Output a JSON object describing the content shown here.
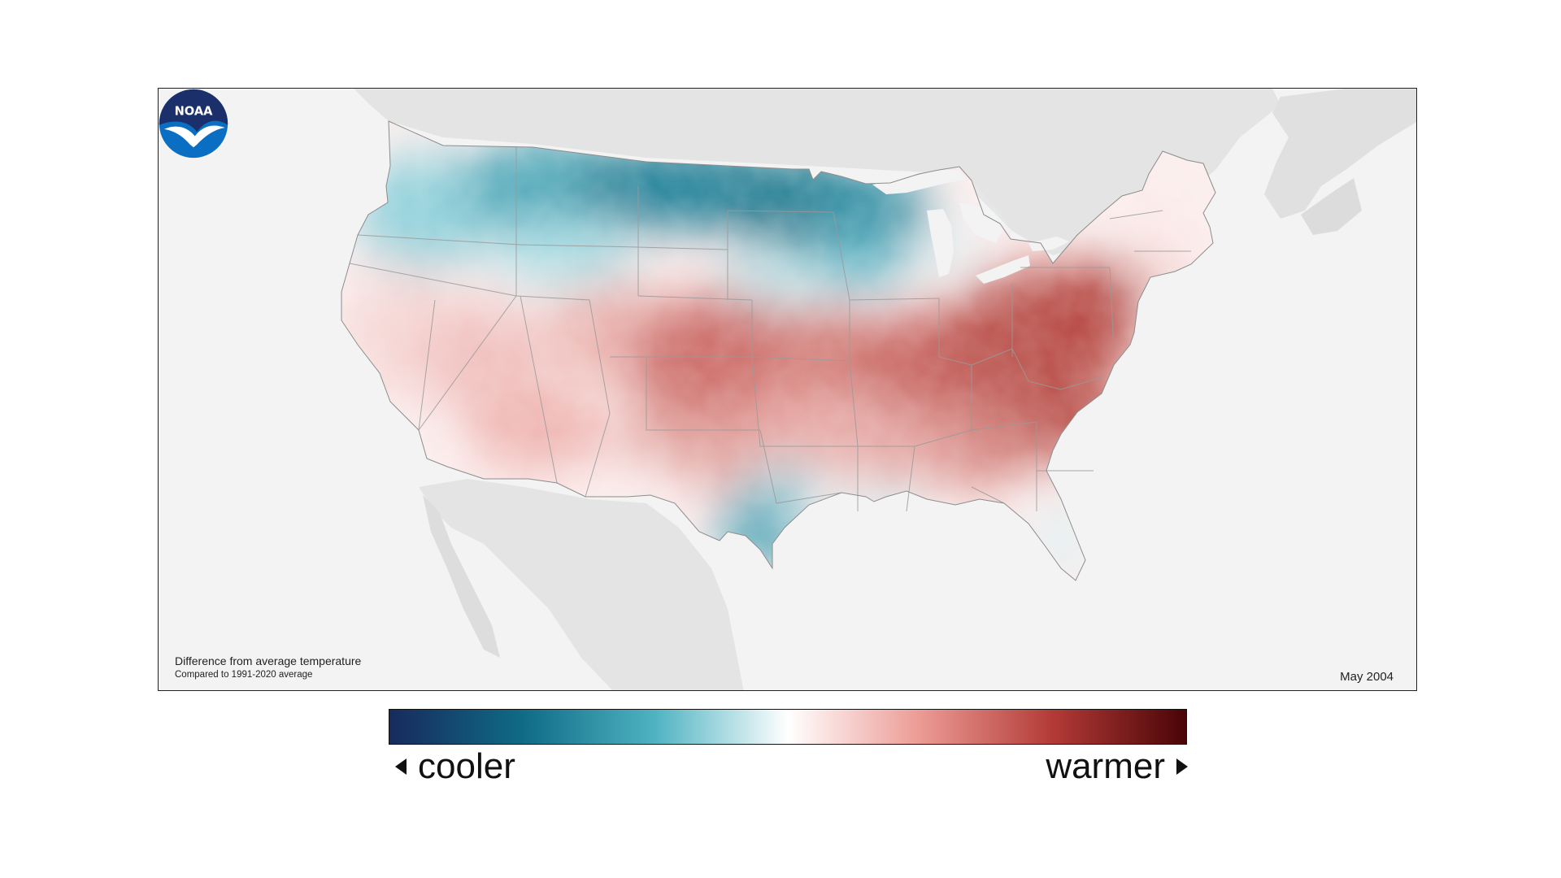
{
  "caption": {
    "title": "Difference from average temperature",
    "subtitle": "Compared to 1991-2020 average"
  },
  "date_label": "May 2004",
  "logo": {
    "text": "NOAA",
    "icon": "noaa-logo-icon"
  },
  "legend": {
    "left_label": "cooler",
    "right_label": "warmer",
    "colors": [
      "#172a5e",
      "#0f6b86",
      "#4fb3c2",
      "#ffffff",
      "#ec9a94",
      "#b23a36",
      "#4a0407"
    ]
  },
  "colors": {
    "land_outside": "#e4e4e4",
    "ocean": "#f3f3f3",
    "lakes": "#f3f3f3",
    "borders": "#9a9a9a"
  }
}
